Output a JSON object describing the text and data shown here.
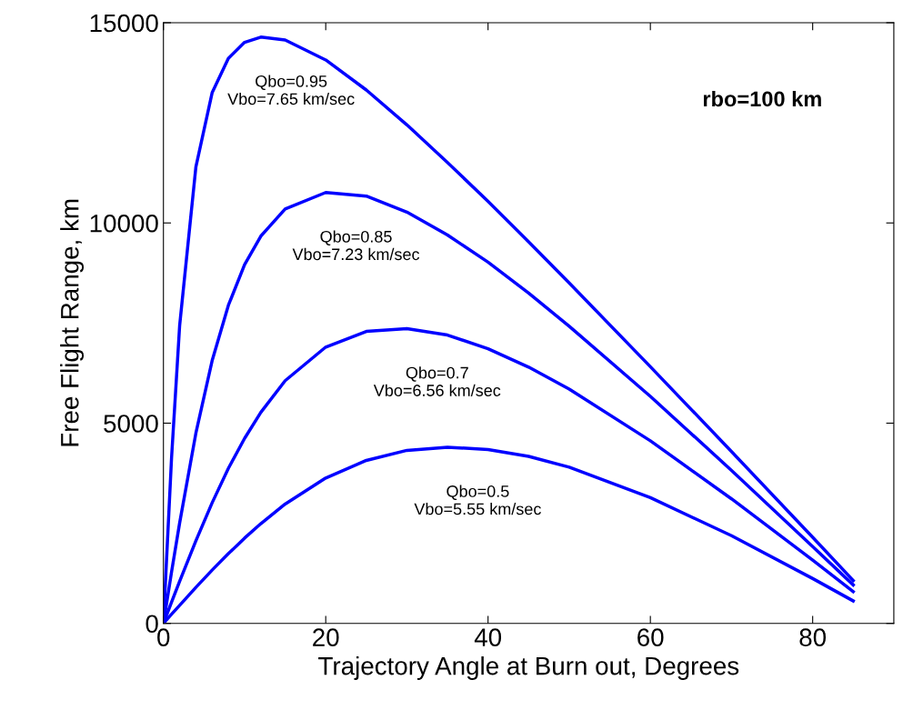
{
  "chart_data": {
    "type": "line",
    "xlabel": "Trajectory Angle at Burn out, Degrees",
    "ylabel": "Free Flight Range, km",
    "xlim": [
      0,
      90
    ],
    "ylim": [
      0,
      15000
    ],
    "xticks": [
      0,
      20,
      40,
      60,
      80
    ],
    "yticks": [
      0,
      5000,
      10000,
      15000
    ],
    "grid": false,
    "legend": false,
    "marker": "none",
    "line_style": "solid",
    "x": [
      0,
      1,
      2,
      4,
      6,
      8,
      10,
      12,
      15,
      20,
      25,
      30,
      35,
      40,
      45,
      50,
      60,
      70,
      80,
      85
    ],
    "series": [
      {
        "name": "Qbo=0.95\nVbo=7.65 km/sec",
        "color": "#0000ff",
        "values": [
          0,
          4130,
          7440,
          11400,
          13250,
          14110,
          14510,
          14640,
          14570,
          14070,
          13320,
          12450,
          11510,
          10540,
          9530,
          8500,
          6410,
          4290,
          2150,
          1070
        ]
      },
      {
        "name": "Qbo=0.85\nVbo=7.23 km/sec",
        "color": "#0000ff",
        "values": [
          0,
          1280,
          2510,
          4750,
          6560,
          7940,
          8960,
          9670,
          10350,
          10760,
          10670,
          10270,
          9700,
          9020,
          8250,
          7420,
          5670,
          3820,
          1920,
          960
        ]
      },
      {
        "name": "Qbo=0.7\nVbo=6.56 km/sec",
        "color": "#0000ff",
        "values": [
          0,
          530,
          1050,
          2060,
          3010,
          3870,
          4620,
          5270,
          6060,
          6900,
          7290,
          7360,
          7200,
          6860,
          6400,
          5850,
          4560,
          3110,
          1580,
          790
        ]
      },
      {
        "name": "Qbo=0.5\nVbo=5.55 km/sec",
        "color": "#0000ff",
        "values": [
          0,
          230,
          450,
          900,
          1330,
          1740,
          2130,
          2490,
          2980,
          3630,
          4070,
          4320,
          4400,
          4340,
          4170,
          3900,
          3140,
          2190,
          1120,
          560
        ]
      }
    ],
    "annotations": [
      "rbo=100 km"
    ]
  }
}
